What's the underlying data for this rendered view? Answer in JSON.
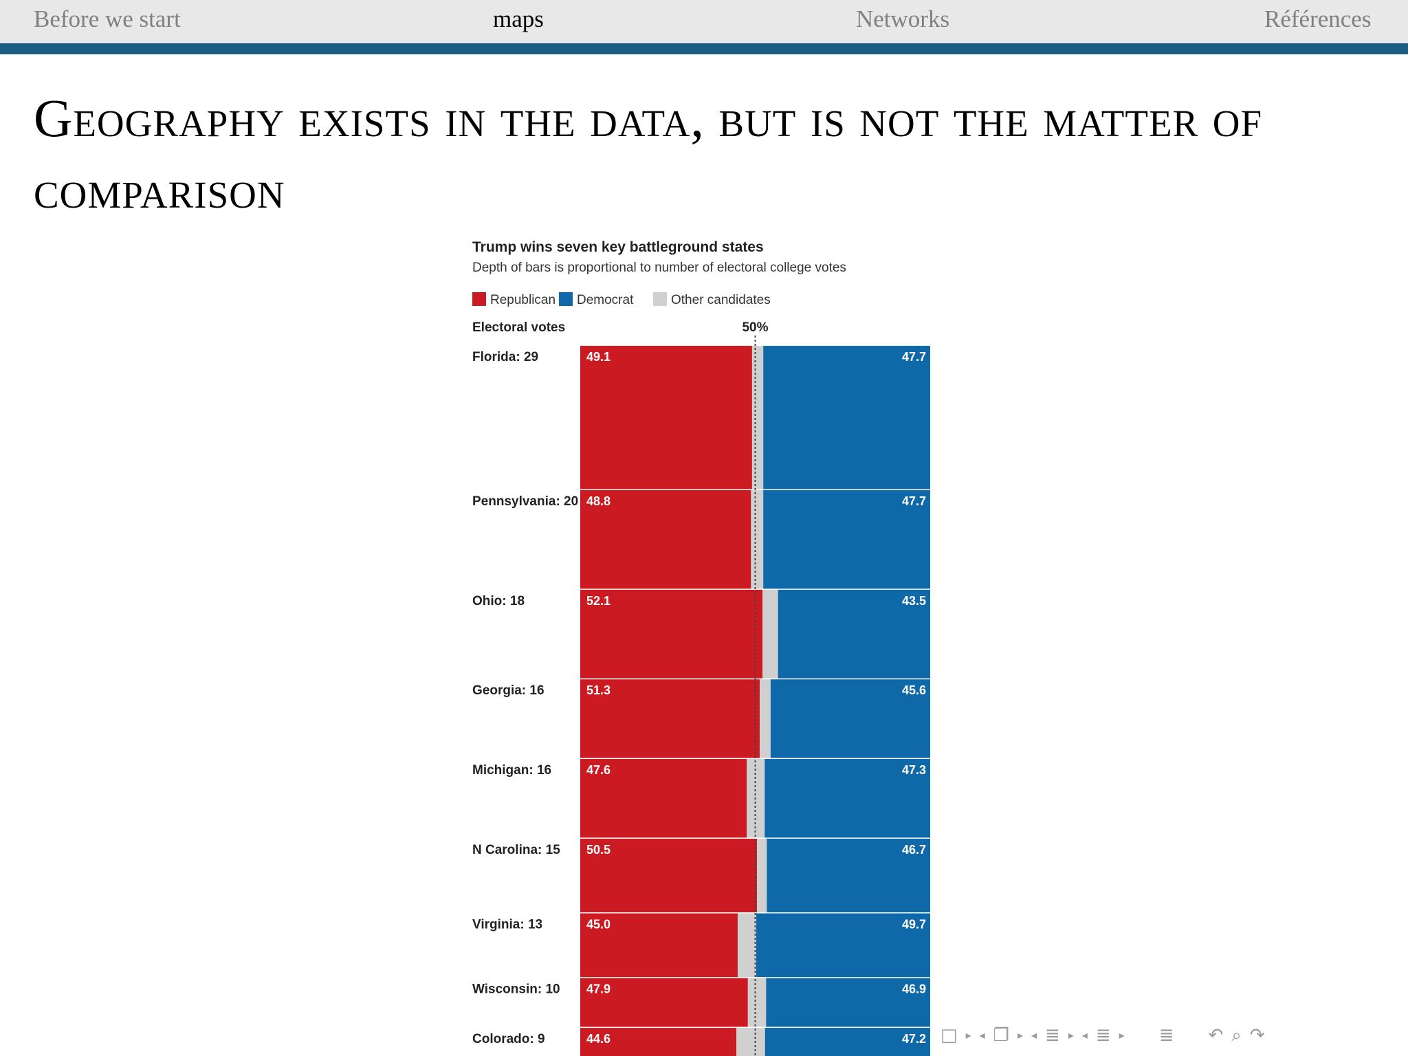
{
  "nav": {
    "items": [
      {
        "label": "Before we start",
        "active": false
      },
      {
        "label": "maps",
        "active": true
      },
      {
        "label": "Networks",
        "active": false
      },
      {
        "label": "Références",
        "active": false
      }
    ]
  },
  "slide": {
    "title": "Geography exists in the data, but is not the matter of comparison"
  },
  "chart_data": {
    "type": "bar",
    "orientation": "horizontal-stacked",
    "title": "Trump wins seven key battleground states",
    "subtitle": "Depth of bars is proportional to number of electoral college votes",
    "row_header": "Electoral votes",
    "reference_label": "50%",
    "reference_value": 50,
    "xlim": [
      0,
      100
    ],
    "legend": [
      {
        "name": "Republican",
        "color": "#cc1a22"
      },
      {
        "name": "Democrat",
        "color": "#0f69a8"
      },
      {
        "name": "Other candidates",
        "color": "#d0d0d0"
      }
    ],
    "categories": [
      {
        "label": "Florida: 29",
        "votes": 29,
        "rep": 49.1,
        "dem": 47.7
      },
      {
        "label": "Pennsylvania: 20",
        "votes": 20,
        "rep": 48.8,
        "dem": 47.7
      },
      {
        "label": "Ohio: 18",
        "votes": 18,
        "rep": 52.1,
        "dem": 43.5
      },
      {
        "label": "Georgia: 16",
        "votes": 16,
        "rep": 51.3,
        "dem": 45.6
      },
      {
        "label": "Michigan: 16",
        "votes": 16,
        "rep": 47.6,
        "dem": 47.3
      },
      {
        "label": "N Carolina: 15",
        "votes": 15,
        "rep": 50.5,
        "dem": 46.7
      },
      {
        "label": "Virginia: 13",
        "votes": 13,
        "rep": 45.0,
        "dem": 49.7
      },
      {
        "label": "Wisconsin: 10",
        "votes": 10,
        "rep": 47.9,
        "dem": 46.9
      },
      {
        "label": "Colorado: 9",
        "votes": 9,
        "rep": 44.6,
        "dem": 47.2
      }
    ]
  },
  "navbar": {
    "icons": [
      "frame-icon",
      "section-icon",
      "subsection-icon",
      "slide-icon",
      "doc-icon",
      "back-icon",
      "search-icon",
      "forward-icon"
    ]
  }
}
